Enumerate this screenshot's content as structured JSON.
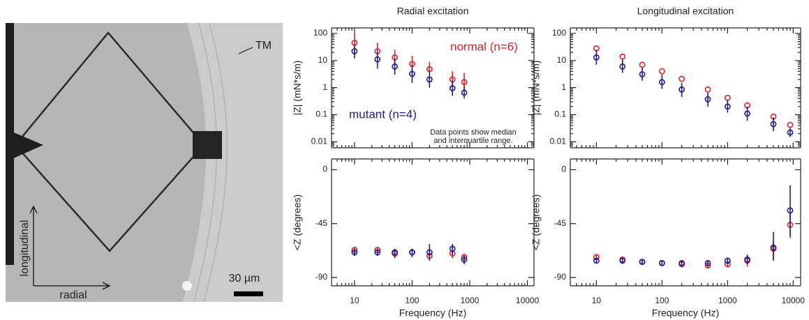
{
  "image": {
    "structure_label": "TM",
    "axis_vertical": "longitudinal",
    "axis_horizontal": "radial",
    "scale_bar": "30 µm"
  },
  "chart_data": [
    {
      "type": "scatter",
      "title": "Radial excitation",
      "ylabel": "|Z| (mN*s/m)",
      "xlog": true,
      "ylog": true,
      "xlim": [
        4,
        13000
      ],
      "xticks": [
        10,
        100,
        1000,
        10000
      ],
      "xtick_labels": false,
      "ylim": [
        0.006,
        160
      ],
      "yticks": [
        0.01,
        0.1,
        1,
        10,
        100
      ],
      "annotation": [
        "Data points show median",
        "and interquartile range."
      ],
      "series": [
        {
          "name": "normal (n=6)",
          "color": "#e32228",
          "x": [
            10,
            25,
            50,
            100,
            200,
            500,
            800
          ],
          "values": [
            45,
            22,
            13,
            7.5,
            4.8,
            2,
            1.6
          ],
          "lower": [
            20,
            10,
            6,
            3.5,
            2,
            1,
            0.8
          ],
          "upper": [
            100,
            45,
            25,
            15,
            9,
            4,
            3.5
          ]
        },
        {
          "name": "mutant (n=4)",
          "color": "#1c1c8a",
          "x": [
            10,
            25,
            50,
            100,
            200,
            500,
            800
          ],
          "values": [
            22,
            11,
            6,
            3.2,
            2,
            0.95,
            0.65
          ],
          "lower": [
            12,
            5,
            3,
            1.5,
            1,
            0.5,
            0.4
          ],
          "upper": [
            40,
            25,
            12,
            7,
            4,
            2,
            1.1
          ]
        }
      ]
    },
    {
      "type": "scatter",
      "title": "Longitudinal excitation",
      "ylabel": "|Z| (mN*s/m)",
      "xlog": true,
      "ylog": true,
      "xlim": [
        4,
        13000
      ],
      "xticks": [
        10,
        100,
        1000,
        10000
      ],
      "xtick_labels": false,
      "ylim": [
        0.006,
        160
      ],
      "yticks": [
        0.01,
        0.1,
        1,
        10,
        100
      ],
      "series": [
        {
          "color": "#e32228",
          "x": [
            10,
            25,
            50,
            100,
            200,
            500,
            1000,
            2000,
            5000,
            9000
          ],
          "values": [
            28,
            14,
            7,
            4,
            2.1,
            0.85,
            0.42,
            0.22,
            0.085,
            0.042
          ]
        },
        {
          "color": "#1c1c8a",
          "x": [
            10,
            25,
            50,
            100,
            200,
            500,
            1000,
            2000,
            5000,
            9000
          ],
          "values": [
            13,
            6,
            3.1,
            1.6,
            0.85,
            0.37,
            0.2,
            0.11,
            0.045,
            0.022
          ],
          "lower": [
            7,
            3.5,
            1.8,
            0.9,
            0.45,
            0.2,
            0.12,
            0.06,
            0.025,
            0.015
          ],
          "upper": [
            25,
            11,
            5.5,
            3,
            1.5,
            0.65,
            0.35,
            0.2,
            0.08,
            0.032
          ]
        }
      ]
    },
    {
      "type": "scatter",
      "ylabel": "<Z (degrees)",
      "xlabel": "Frequency (Hz)",
      "xlog": true,
      "ylog": false,
      "xlim": [
        4,
        13000
      ],
      "xticks": [
        10,
        100,
        1000,
        10000
      ],
      "ylim": [
        -97,
        9
      ],
      "yticks": [
        0,
        -45,
        -90
      ],
      "series": [
        {
          "color": "#e32228",
          "x": [
            10,
            25,
            50,
            100,
            200,
            500,
            800
          ],
          "values": [
            -67,
            -67,
            -70,
            -69,
            -72,
            -70,
            -73
          ],
          "lower": [
            -70,
            -70,
            -74,
            -72,
            -75,
            -74,
            -76
          ],
          "upper": [
            -65,
            -65,
            -67,
            -66,
            -68,
            -67,
            -70
          ]
        },
        {
          "color": "#1c1c8a",
          "x": [
            10,
            25,
            50,
            100,
            200,
            500,
            800
          ],
          "values": [
            -69,
            -69,
            -69,
            -69,
            -69,
            -66,
            -75
          ],
          "lower": [
            -72,
            -72,
            -73,
            -73,
            -76,
            -71,
            -79
          ],
          "upper": [
            -66,
            -67,
            -66,
            -66,
            -62,
            -62,
            -72
          ]
        }
      ]
    },
    {
      "type": "scatter",
      "ylabel": "<Z (degrees)",
      "xlabel": "Frequency (Hz)",
      "xlog": true,
      "ylog": false,
      "xlim": [
        4,
        13000
      ],
      "xticks": [
        10,
        100,
        1000,
        10000
      ],
      "ylim": [
        -97,
        9
      ],
      "yticks": [
        0,
        -45,
        -90
      ],
      "series": [
        {
          "color": "#e32228",
          "x": [
            10,
            25,
            50,
            100,
            200,
            500,
            1000,
            2000,
            5000,
            9000
          ],
          "values": [
            -73,
            -75,
            -77,
            -78,
            -79,
            -80,
            -79,
            -76,
            -66,
            -46
          ],
          "lower": [
            -75,
            -77,
            -79,
            -80,
            -81,
            -82,
            -81,
            -81,
            -75,
            -57
          ],
          "upper": [
            -71,
            -73,
            -75,
            -76,
            -77,
            -78,
            -77,
            -71,
            -60,
            -36
          ]
        },
        {
          "color": "#1c1c8a",
          "x": [
            10,
            25,
            50,
            100,
            200,
            500,
            1000,
            2000,
            5000,
            9000
          ],
          "values": [
            -76,
            -76,
            -77,
            -78,
            -78,
            -78,
            -76,
            -75,
            -65,
            -34
          ],
          "lower": [
            -78,
            -78,
            -79,
            -80,
            -80,
            -80,
            -78,
            -79,
            -76,
            -55
          ],
          "upper": [
            -74,
            -74,
            -75,
            -76,
            -76,
            -76,
            -74,
            -71,
            -52,
            -13
          ]
        }
      ]
    }
  ]
}
